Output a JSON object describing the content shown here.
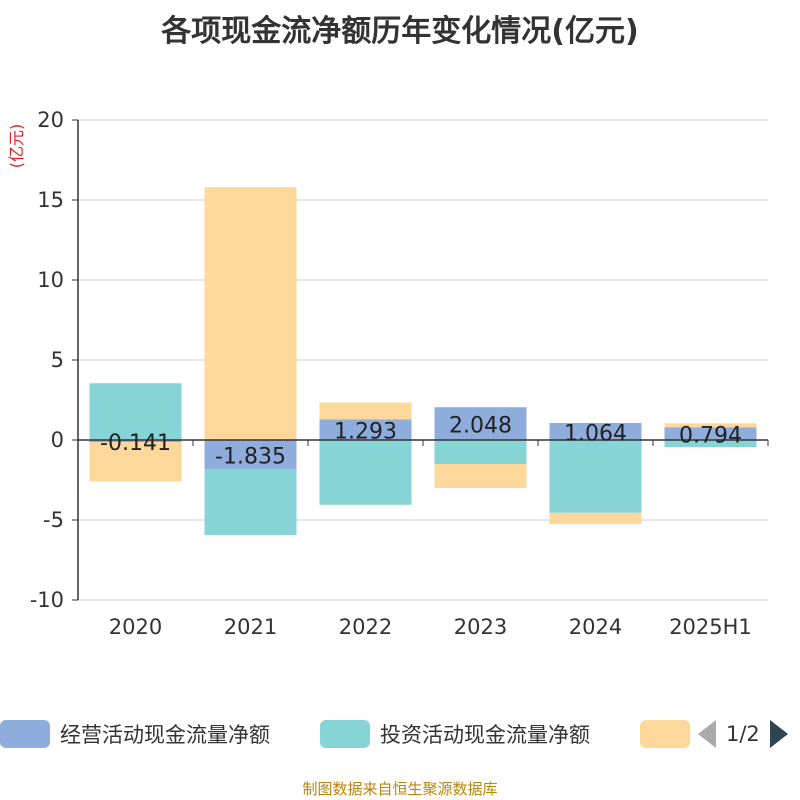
{
  "chart_data": {
    "type": "bar",
    "stacked": true,
    "title": "各项现金流净额历年变化情况(亿元)",
    "ylabel": "(亿元)",
    "ylim": [
      -10,
      20
    ],
    "yticks": [
      -10,
      -5,
      0,
      5,
      10,
      15,
      20
    ],
    "grid": true,
    "categories": [
      "2020",
      "2021",
      "2022",
      "2023",
      "2024",
      "2025H1"
    ],
    "series": [
      {
        "name": "经营活动现金流量净额",
        "color": "#8eacdc",
        "values": [
          -0.14,
          -1.835,
          1.293,
          2.048,
          1.064,
          0.794
        ],
        "labels": [
          "-0.141",
          "-1.835",
          "1.293",
          "2.048",
          "1.064",
          "0.794"
        ]
      },
      {
        "name": "投资活动现金流量净额",
        "color": "#86d4d6",
        "values": [
          3.55,
          -4.1,
          -4.05,
          -1.5,
          -4.55,
          -0.45
        ]
      },
      {
        "name": "",
        "color": "#fdd89a",
        "values": [
          -2.45,
          15.8,
          1.05,
          -1.5,
          -0.7,
          0.25
        ]
      }
    ],
    "legend_position": "bottom",
    "legend_page": "1/2"
  },
  "footer": {
    "source": "制图数据来自恒生聚源数据库"
  }
}
